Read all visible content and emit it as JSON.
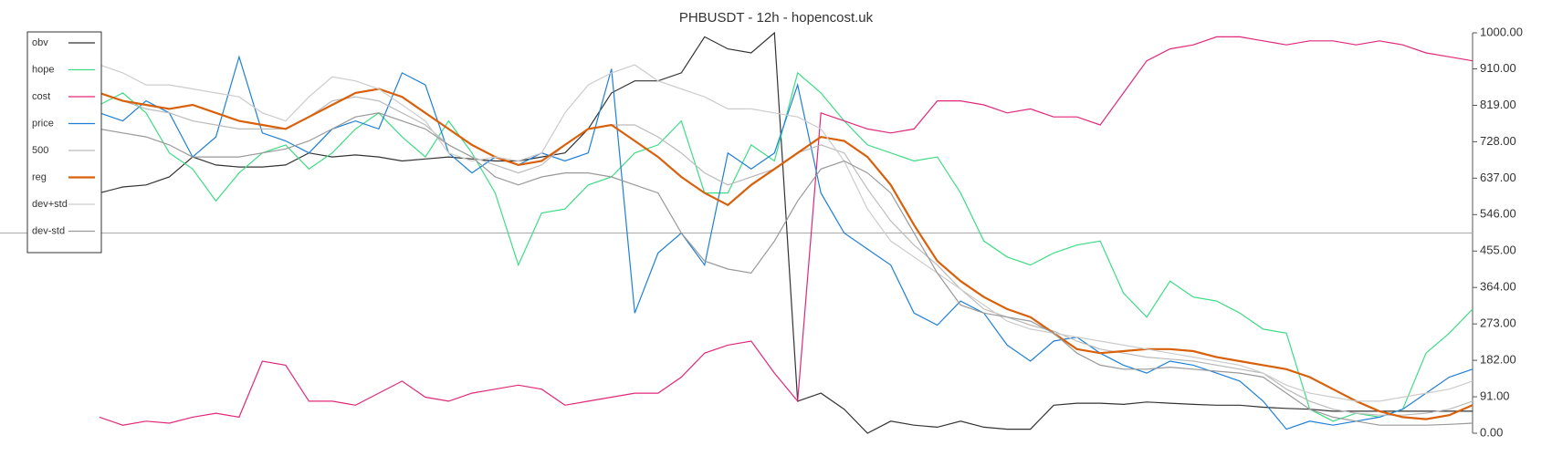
{
  "chart_data": {
    "type": "line",
    "title": "PHBUSDT - 12h - hopencost.uk",
    "ylim": [
      0,
      1000
    ],
    "yticks": [
      {
        "value": 0,
        "label": "0.00"
      },
      {
        "value": 91,
        "label": "91.00"
      },
      {
        "value": 182,
        "label": "182.00"
      },
      {
        "value": 273,
        "label": "273.00"
      },
      {
        "value": 364,
        "label": "364.00"
      },
      {
        "value": 455,
        "label": "455.00"
      },
      {
        "value": 546,
        "label": "546.00"
      },
      {
        "value": 637,
        "label": "637.00"
      },
      {
        "value": 728,
        "label": "728.00"
      },
      {
        "value": 819,
        "label": "819.00"
      },
      {
        "value": 910,
        "label": "910.00"
      },
      {
        "value": 1000,
        "label": "1000.00"
      }
    ],
    "reference_line": 500,
    "legend": "top-left",
    "series": [
      {
        "name": "obv",
        "color": "#333333",
        "values": [
          600,
          615,
          620,
          640,
          690,
          670,
          665,
          665,
          670,
          700,
          690,
          695,
          690,
          680,
          685,
          690,
          685,
          680,
          680,
          690,
          700,
          760,
          850,
          880,
          880,
          900,
          990,
          960,
          950,
          1000,
          80,
          100,
          60,
          0,
          30,
          20,
          15,
          30,
          15,
          10,
          10,
          70,
          75,
          75,
          72,
          78,
          75,
          72,
          70,
          70,
          65,
          62,
          60,
          55,
          55,
          55,
          55,
          55,
          55,
          55
        ]
      },
      {
        "name": "hope",
        "color": "#3ddc84",
        "values": [
          820,
          850,
          800,
          700,
          660,
          580,
          650,
          700,
          720,
          660,
          700,
          760,
          800,
          740,
          690,
          780,
          700,
          600,
          420,
          550,
          560,
          620,
          640,
          700,
          720,
          780,
          600,
          600,
          720,
          680,
          900,
          850,
          780,
          720,
          700,
          680,
          690,
          600,
          480,
          440,
          420,
          450,
          470,
          480,
          350,
          290,
          380,
          340,
          330,
          300,
          260,
          250,
          60,
          30,
          50,
          40,
          60,
          200,
          250,
          310
        ]
      },
      {
        "name": "cost",
        "color": "#e0287a",
        "values": [
          40,
          20,
          30,
          25,
          40,
          50,
          40,
          180,
          170,
          80,
          80,
          70,
          100,
          130,
          90,
          80,
          100,
          110,
          120,
          110,
          70,
          80,
          90,
          100,
          100,
          140,
          200,
          220,
          230,
          150,
          80,
          800,
          780,
          760,
          750,
          760,
          830,
          830,
          820,
          800,
          810,
          790,
          790,
          770,
          850,
          930,
          960,
          970,
          990,
          990,
          980,
          970,
          980,
          980,
          970,
          980,
          970,
          950,
          940,
          930
        ]
      },
      {
        "name": "price",
        "color": "#1f7fd6",
        "values": [
          800,
          780,
          830,
          800,
          690,
          740,
          940,
          750,
          730,
          700,
          760,
          780,
          760,
          900,
          870,
          700,
          650,
          690,
          670,
          700,
          680,
          700,
          910,
          300,
          450,
          500,
          420,
          700,
          660,
          700,
          870,
          600,
          500,
          460,
          420,
          300,
          270,
          330,
          300,
          220,
          180,
          230,
          240,
          200,
          170,
          150,
          180,
          170,
          150,
          130,
          80,
          10,
          30,
          20,
          30,
          40,
          60,
          100,
          140,
          160
        ]
      },
      {
        "name": "500",
        "color": "#bbbbbb",
        "values": [
          850,
          830,
          810,
          800,
          780,
          770,
          760,
          760,
          760,
          790,
          830,
          840,
          830,
          800,
          770,
          720,
          690,
          670,
          650,
          670,
          720,
          760,
          770,
          770,
          740,
          700,
          650,
          620,
          640,
          660,
          700,
          720,
          700,
          610,
          530,
          470,
          420,
          360,
          310,
          290,
          270,
          255,
          230,
          210,
          200,
          190,
          185,
          180,
          170,
          160,
          150,
          110,
          80,
          60,
          50,
          45,
          45,
          50,
          60,
          80
        ]
      },
      {
        "name": "reg",
        "color": "#d9600a",
        "values": [
          850,
          830,
          820,
          810,
          820,
          800,
          780,
          770,
          760,
          790,
          820,
          850,
          860,
          840,
          800,
          760,
          720,
          690,
          670,
          680,
          720,
          760,
          770,
          730,
          690,
          640,
          600,
          570,
          620,
          660,
          700,
          740,
          730,
          690,
          620,
          520,
          430,
          380,
          340,
          310,
          290,
          250,
          210,
          200,
          205,
          210,
          210,
          205,
          190,
          180,
          170,
          160,
          140,
          110,
          80,
          55,
          40,
          35,
          45,
          70
        ]
      },
      {
        "name": "dev+std",
        "color": "#cccccc",
        "values": [
          920,
          900,
          870,
          870,
          860,
          850,
          840,
          800,
          780,
          840,
          890,
          880,
          860,
          820,
          780,
          700,
          680,
          690,
          680,
          700,
          800,
          870,
          900,
          920,
          880,
          860,
          840,
          810,
          810,
          800,
          790,
          760,
          680,
          560,
          480,
          440,
          400,
          360,
          320,
          280,
          260,
          250,
          240,
          230,
          220,
          210,
          200,
          190,
          180,
          170,
          150,
          120,
          100,
          90,
          80,
          80,
          90,
          100,
          110,
          130
        ]
      },
      {
        "name": "dev-std",
        "color": "#999999",
        "values": [
          760,
          750,
          740,
          720,
          690,
          690,
          690,
          700,
          710,
          730,
          760,
          790,
          800,
          780,
          760,
          720,
          690,
          640,
          620,
          640,
          650,
          650,
          640,
          620,
          600,
          500,
          430,
          410,
          400,
          480,
          580,
          660,
          680,
          650,
          600,
          500,
          400,
          320,
          300,
          290,
          280,
          250,
          200,
          170,
          160,
          160,
          165,
          160,
          155,
          150,
          140,
          100,
          60,
          40,
          30,
          20,
          20,
          20,
          22,
          25
        ]
      }
    ]
  }
}
